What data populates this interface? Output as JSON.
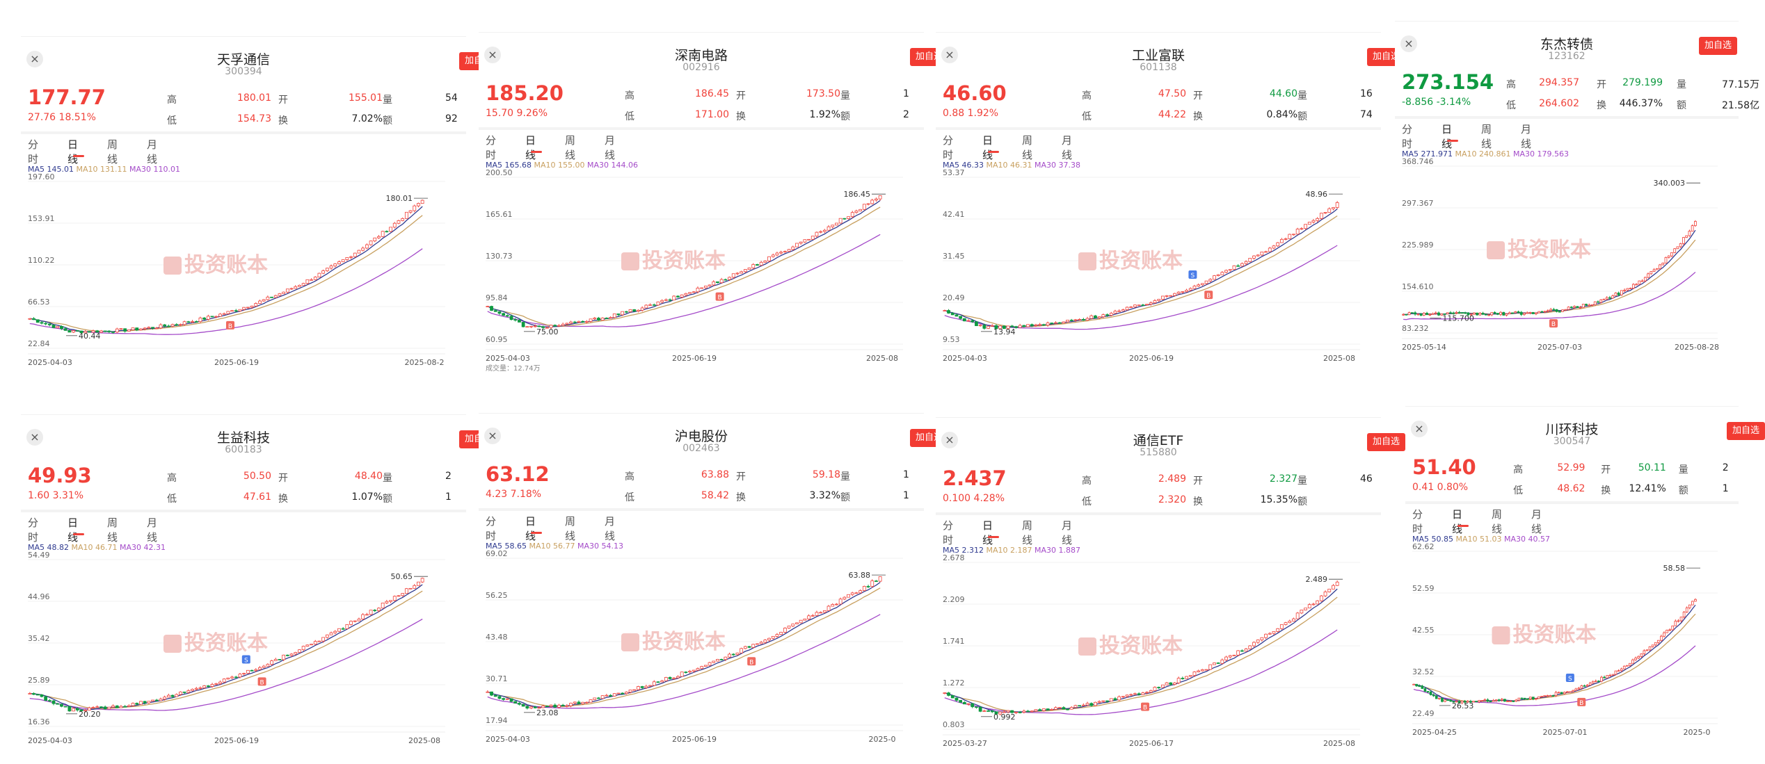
{
  "common": {
    "close_icon": "×",
    "add_label": "加自选",
    "labels": {
      "high": "高",
      "open": "开",
      "volume": "量",
      "low": "低",
      "turnover_rate": "换",
      "amount": "额"
    },
    "tabs": [
      "分时",
      "日线",
      "周线",
      "月线"
    ],
    "ma_labels": {
      "ma5": "MA5",
      "ma10": "MA10",
      "ma30": "MA30"
    },
    "watermark": "投资账本",
    "colors": {
      "up": "#f0423a",
      "down": "#0f9a41",
      "ma5": "#2f3a8f",
      "ma10": "#c8a060",
      "ma30": "#a44bc9",
      "button": "#f23b32"
    }
  },
  "stocks": [
    {
      "name": "天孚通信",
      "code": "300394",
      "price": "177.77",
      "change": "27.76",
      "change_pct": "18.51%",
      "direction": "up",
      "high": "180.01",
      "open": "155.01",
      "volume": "54",
      "low": "154.73",
      "turnover": "7.02%",
      "amount": "92",
      "ma5": "145.01",
      "ma10": "131.11",
      "ma30": "110.01",
      "y_ticks": [
        "197.60",
        "153.91",
        "110.22",
        "66.53",
        "22.84"
      ],
      "ylim": [
        22.84,
        197.6
      ],
      "dates": [
        "2025-04-03",
        "2025-06-19",
        "2025-08-2"
      ],
      "annot_high": "180.01",
      "annot_low": "40.44",
      "chart_data": {
        "type": "candlestick",
        "start_value": 54,
        "low_value": 40.44,
        "end_value": 178,
        "max_value": 180.01,
        "rise_shape": 1.6
      }
    },
    {
      "name": "深南电路",
      "code": "002916",
      "price": "185.20",
      "change": "15.70",
      "change_pct": "9.26%",
      "direction": "up",
      "high": "186.45",
      "open": "173.50",
      "volume": "1",
      "low": "171.00",
      "turnover": "1.92%",
      "amount": "2",
      "ma5": "165.68",
      "ma10": "155.00",
      "ma30": "144.06",
      "y_ticks": [
        "200.50",
        "165.61",
        "130.73",
        "95.84",
        "60.95"
      ],
      "ylim": [
        60.95,
        200.5
      ],
      "dates": [
        "2025-04-03",
        "2025-06-19",
        "2025-08"
      ],
      "annot_high": "186.45",
      "annot_low": "75.00",
      "extra": "成交量：12.74万",
      "chart_data": {
        "type": "candlestick",
        "start_value": 92,
        "low_value": 75.0,
        "end_value": 185,
        "max_value": 186.45,
        "rise_shape": 0.9
      }
    },
    {
      "name": "工业富联",
      "code": "601138",
      "price": "46.60",
      "change": "0.88",
      "change_pct": "1.92%",
      "direction": "up",
      "high": "47.50",
      "open": "44.60",
      "volume": "16",
      "low": "44.22",
      "turnover": "0.84%",
      "amount": "74",
      "ma5": "46.33",
      "ma10": "46.31",
      "ma30": "37.38",
      "y_ticks": [
        "53.37",
        "42.41",
        "31.45",
        "20.49",
        "9.53"
      ],
      "ylim": [
        9.53,
        53.37
      ],
      "dates": [
        "2025-04-03",
        "2025-06-19",
        "2025-08"
      ],
      "annot_high": "48.96",
      "annot_low": "13.94",
      "chart_data": {
        "type": "candlestick",
        "start_value": 18,
        "low_value": 13.94,
        "end_value": 46.6,
        "max_value": 48.96,
        "rise_shape": 1.3
      }
    },
    {
      "name": "东杰转债",
      "code": "123162",
      "price": "273.154",
      "change": "-8.856",
      "change_pct": "-3.14%",
      "direction": "down",
      "high": "294.357",
      "open": "279.199",
      "volume": "77.15万",
      "low": "264.602",
      "turnover": "446.37%",
      "amount": "21.58亿",
      "ma5": "271.971",
      "ma10": "240.861",
      "ma30": "179.563",
      "y_ticks": [
        "368.746",
        "297.367",
        "225.989",
        "154.610",
        "83.232"
      ],
      "ylim": [
        83.232,
        368.746
      ],
      "dates": [
        "2025-05-14",
        "2025-07-03",
        "2025-08-28"
      ],
      "annot_high": "340.003",
      "annot_low": "115.700",
      "chart_data": {
        "type": "candlestick",
        "start_value": 117,
        "low_value": 115.7,
        "end_value": 273,
        "max_value": 340.0,
        "rise_shape": 3.5
      }
    },
    {
      "name": "生益科技",
      "code": "600183",
      "price": "49.93",
      "change": "1.60",
      "change_pct": "3.31%",
      "direction": "up",
      "high": "50.50",
      "open": "48.40",
      "volume": "2",
      "low": "47.61",
      "turnover": "1.07%",
      "amount": "1",
      "ma5": "48.82",
      "ma10": "46.71",
      "ma30": "42.31",
      "y_ticks": [
        "54.49",
        "44.96",
        "35.42",
        "25.89",
        "16.36"
      ],
      "ylim": [
        16.36,
        54.49
      ],
      "dates": [
        "2025-04-03",
        "2025-06-19",
        "2025-08"
      ],
      "annot_high": "50.65",
      "annot_low": "20.20",
      "chart_data": {
        "type": "candlestick",
        "start_value": 24,
        "low_value": 20.2,
        "end_value": 50,
        "max_value": 50.65,
        "rise_shape": 1.0
      }
    },
    {
      "name": "沪电股份",
      "code": "002463",
      "price": "63.12",
      "change": "4.23",
      "change_pct": "7.18%",
      "direction": "up",
      "high": "63.88",
      "open": "59.18",
      "volume": "1",
      "low": "58.42",
      "turnover": "3.32%",
      "amount": "1",
      "ma5": "58.65",
      "ma10": "56.77",
      "ma30": "54.13",
      "y_ticks": [
        "69.02",
        "56.25",
        "43.48",
        "30.71",
        "17.94"
      ],
      "ylim": [
        17.94,
        69.02
      ],
      "dates": [
        "2025-04-03",
        "2025-06-19",
        "2025-0"
      ],
      "annot_high": "63.88",
      "annot_low": "23.08",
      "chart_data": {
        "type": "candlestick",
        "start_value": 28,
        "low_value": 23.08,
        "end_value": 63,
        "max_value": 63.88,
        "rise_shape": 0.8
      }
    },
    {
      "name": "通信ETF",
      "code": "515880",
      "price": "2.437",
      "change": "0.100",
      "change_pct": "4.28%",
      "direction": "up",
      "high": "2.489",
      "open": "2.327",
      "volume": "46",
      "low": "2.320",
      "turnover": "15.35%",
      "amount": "",
      "ma5": "2.312",
      "ma10": "2.187",
      "ma30": "1.887",
      "y_ticks": [
        "2.678",
        "2.209",
        "1.741",
        "1.272",
        "0.803"
      ],
      "ylim": [
        0.803,
        2.678
      ],
      "dates": [
        "2025-03-27",
        "2025-06-17",
        "2025-08"
      ],
      "annot_high": "2.489",
      "annot_low": "0.992",
      "chart_data": {
        "type": "candlestick",
        "start_value": 1.2,
        "low_value": 0.992,
        "end_value": 2.44,
        "max_value": 2.489,
        "rise_shape": 1.5
      }
    },
    {
      "name": "川环科技",
      "code": "300547",
      "price": "51.40",
      "change": "0.41",
      "change_pct": "0.80%",
      "direction": "up",
      "high": "52.99",
      "open": "50.11",
      "volume": "2",
      "low": "48.62",
      "turnover": "12.41%",
      "amount": "1",
      "ma5": "50.85",
      "ma10": "51.03",
      "ma30": "40.57",
      "y_ticks": [
        "62.62",
        "52.59",
        "42.55",
        "32.52",
        "22.49"
      ],
      "ylim": [
        22.49,
        62.62
      ],
      "dates": [
        "2025-04-25",
        "2025-07-01",
        "2025-0"
      ],
      "annot_high": "58.58",
      "annot_low": "26.53",
      "chart_data": {
        "type": "candlestick",
        "start_value": 31,
        "low_value": 26.53,
        "end_value": 51.4,
        "max_value": 58.58,
        "rise_shape": 2.5
      }
    }
  ]
}
